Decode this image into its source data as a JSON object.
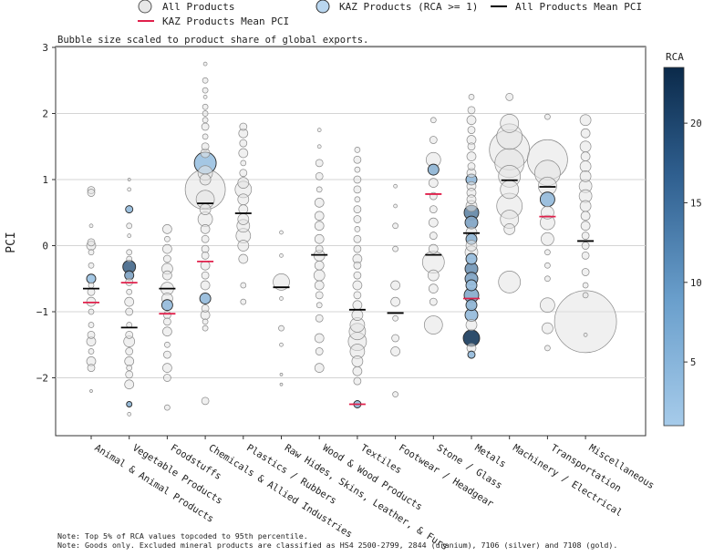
{
  "chart_data": {
    "type": "scatter",
    "subtitle": "Bubble size scaled to product share of global exports.",
    "ylabel": "PCI",
    "xlabel": "",
    "ylim": [
      -2.9,
      3.0
    ],
    "yticks": [
      -2,
      -1,
      0,
      1,
      2,
      3
    ],
    "grid": true,
    "legend": {
      "placement": "top",
      "entries": [
        {
          "label": "All Products",
          "marker": "open-circle"
        },
        {
          "label": "KAZ Products (RCA >= 1)",
          "marker": "blue-circle"
        },
        {
          "label": "All Products Mean PCI",
          "marker": "black-line"
        },
        {
          "label": "KAZ Products Mean PCI",
          "marker": "red-line"
        }
      ]
    },
    "colorbar": {
      "title": "RCA",
      "min": 1,
      "max": 23.5,
      "ticks": [
        5,
        10,
        15,
        20
      ],
      "color_low": "#a6cbea",
      "color_high": "#0b2a4a"
    },
    "categories": [
      "Animal & Animal Products",
      "Vegetable Products",
      "Foodstuffs",
      "Chemicals & Allied Industries",
      "Plastics / Rubbers",
      "Raw Hides, Skins, Leather, & Furs",
      "Wood & Wood Products",
      "Textiles",
      "Footwear / Headgear",
      "Stone / Glass",
      "Metals",
      "Machinery / Electrical",
      "Transportation",
      "Miscellaneous"
    ],
    "all_mean_pci": [
      -0.65,
      -1.24,
      -0.65,
      0.64,
      0.49,
      -0.63,
      -0.14,
      -0.97,
      -1.02,
      -0.14,
      0.19,
      0.99,
      0.89,
      0.07
    ],
    "kaz_mean_pci": [
      -0.86,
      -0.56,
      -1.03,
      -0.24,
      null,
      null,
      null,
      -2.4,
      null,
      0.78,
      -0.8,
      null,
      0.44,
      null
    ],
    "products": [
      [
        [
          0.84,
          4,
          0
        ],
        [
          0.8,
          4,
          0
        ],
        [
          0.3,
          2,
          0
        ],
        [
          0.05,
          4,
          0
        ],
        [
          0.0,
          5,
          0
        ],
        [
          -0.1,
          3,
          0
        ],
        [
          -0.3,
          3,
          0
        ],
        [
          -0.5,
          5,
          2
        ],
        [
          -0.6,
          3,
          0
        ],
        [
          -0.7,
          4,
          0
        ],
        [
          -0.85,
          5,
          0
        ],
        [
          -1.0,
          3,
          0
        ],
        [
          -1.2,
          3,
          0
        ],
        [
          -1.35,
          4,
          0
        ],
        [
          -1.45,
          5,
          0
        ],
        [
          -1.6,
          3,
          0
        ],
        [
          -1.75,
          5,
          0
        ],
        [
          -1.85,
          4,
          0
        ],
        [
          -2.2,
          1.5,
          0
        ]
      ],
      [
        [
          1.0,
          1.5,
          0
        ],
        [
          0.85,
          2,
          0
        ],
        [
          0.55,
          4,
          3
        ],
        [
          0.3,
          3,
          0
        ],
        [
          0.15,
          2,
          0
        ],
        [
          -0.1,
          3,
          0
        ],
        [
          -0.2,
          3,
          0
        ],
        [
          -0.32,
          7,
          14
        ],
        [
          -0.45,
          5,
          6
        ],
        [
          -0.55,
          4,
          0
        ],
        [
          -0.7,
          3,
          0
        ],
        [
          -0.85,
          5,
          0
        ],
        [
          -1.0,
          4,
          0
        ],
        [
          -1.2,
          3,
          0
        ],
        [
          -1.35,
          4,
          0
        ],
        [
          -1.45,
          6,
          0
        ],
        [
          -1.6,
          4,
          0
        ],
        [
          -1.75,
          5,
          0
        ],
        [
          -1.85,
          3,
          0
        ],
        [
          -1.95,
          4,
          0
        ],
        [
          -2.1,
          5,
          0
        ],
        [
          -2.4,
          3,
          4
        ],
        [
          -2.55,
          2,
          0
        ]
      ],
      [
        [
          0.25,
          5,
          0
        ],
        [
          0.1,
          3,
          0
        ],
        [
          -0.05,
          5,
          0
        ],
        [
          -0.2,
          4,
          0
        ],
        [
          -0.35,
          6,
          0
        ],
        [
          -0.45,
          5,
          0
        ],
        [
          -0.65,
          7,
          0
        ],
        [
          -0.8,
          6,
          0
        ],
        [
          -0.9,
          6,
          3
        ],
        [
          -1.05,
          4,
          0
        ],
        [
          -1.15,
          4,
          0
        ],
        [
          -1.3,
          5,
          0
        ],
        [
          -1.5,
          3,
          0
        ],
        [
          -1.65,
          4,
          0
        ],
        [
          -1.85,
          5,
          0
        ],
        [
          -2.0,
          4,
          0
        ],
        [
          -2.45,
          3,
          0
        ]
      ],
      [
        [
          2.75,
          2,
          0
        ],
        [
          2.5,
          3,
          0
        ],
        [
          2.35,
          3,
          0
        ],
        [
          2.25,
          2,
          0
        ],
        [
          2.1,
          3,
          0
        ],
        [
          2.0,
          3,
          0
        ],
        [
          1.9,
          3,
          0
        ],
        [
          1.8,
          4,
          0
        ],
        [
          1.65,
          3,
          0
        ],
        [
          1.5,
          4,
          0
        ],
        [
          1.4,
          5,
          0
        ],
        [
          1.25,
          12,
          2
        ],
        [
          1.1,
          8,
          0
        ],
        [
          1.0,
          6,
          0
        ],
        [
          0.85,
          22,
          0
        ],
        [
          0.7,
          10,
          0
        ],
        [
          0.55,
          6,
          0
        ],
        [
          0.4,
          8,
          0
        ],
        [
          0.25,
          5,
          0
        ],
        [
          0.1,
          4,
          0
        ],
        [
          -0.05,
          4,
          0
        ],
        [
          -0.15,
          4,
          0
        ],
        [
          -0.3,
          5,
          0
        ],
        [
          -0.45,
          4,
          0
        ],
        [
          -0.6,
          5,
          0
        ],
        [
          -0.8,
          6,
          3
        ],
        [
          -0.95,
          4,
          0
        ],
        [
          -1.05,
          5,
          0
        ],
        [
          -1.15,
          3,
          0
        ],
        [
          -1.25,
          3,
          0
        ],
        [
          -2.35,
          4,
          0
        ]
      ],
      [
        [
          1.8,
          4,
          0
        ],
        [
          1.7,
          5,
          0
        ],
        [
          1.55,
          4,
          0
        ],
        [
          1.4,
          5,
          0
        ],
        [
          1.25,
          3,
          0
        ],
        [
          1.1,
          4,
          0
        ],
        [
          0.95,
          6,
          0
        ],
        [
          0.85,
          9,
          0
        ],
        [
          0.7,
          6,
          0
        ],
        [
          0.55,
          5,
          0
        ],
        [
          0.4,
          6,
          0
        ],
        [
          0.3,
          7,
          0
        ],
        [
          0.15,
          8,
          0
        ],
        [
          0.0,
          6,
          0
        ],
        [
          -0.2,
          5,
          0
        ],
        [
          -0.6,
          3,
          0
        ],
        [
          -0.85,
          3,
          0
        ]
      ],
      [
        [
          0.2,
          2,
          0
        ],
        [
          -0.15,
          2,
          0
        ],
        [
          -0.55,
          9,
          0
        ],
        [
          -0.8,
          2,
          0
        ],
        [
          -1.25,
          3,
          0
        ],
        [
          -1.5,
          2,
          0
        ],
        [
          -1.95,
          1.5,
          0
        ],
        [
          -2.1,
          1.5,
          0
        ]
      ],
      [
        [
          1.75,
          2,
          0
        ],
        [
          1.5,
          2,
          0
        ],
        [
          1.25,
          4,
          0
        ],
        [
          1.05,
          4,
          0
        ],
        [
          0.85,
          3,
          0
        ],
        [
          0.65,
          5,
          0
        ],
        [
          0.45,
          5,
          0
        ],
        [
          0.3,
          5,
          0
        ],
        [
          0.1,
          5,
          0
        ],
        [
          -0.05,
          4,
          0
        ],
        [
          -0.15,
          6,
          0
        ],
        [
          -0.3,
          5,
          0
        ],
        [
          -0.45,
          6,
          0
        ],
        [
          -0.6,
          5,
          0
        ],
        [
          -0.75,
          4,
          0
        ],
        [
          -0.9,
          3,
          0
        ],
        [
          -1.1,
          4,
          0
        ],
        [
          -1.4,
          5,
          0
        ],
        [
          -1.6,
          4,
          0
        ],
        [
          -1.85,
          5,
          0
        ]
      ],
      [
        [
          1.45,
          3,
          0
        ],
        [
          1.3,
          4,
          0
        ],
        [
          1.15,
          3,
          0
        ],
        [
          1.0,
          4,
          0
        ],
        [
          0.85,
          4,
          0
        ],
        [
          0.7,
          3,
          0
        ],
        [
          0.55,
          4,
          0
        ],
        [
          0.4,
          4,
          0
        ],
        [
          0.25,
          3,
          0
        ],
        [
          0.1,
          4,
          0
        ],
        [
          -0.05,
          4,
          0
        ],
        [
          -0.2,
          5,
          0
        ],
        [
          -0.3,
          4,
          0
        ],
        [
          -0.45,
          4,
          0
        ],
        [
          -0.6,
          5,
          0
        ],
        [
          -0.75,
          4,
          0
        ],
        [
          -0.9,
          5,
          0
        ],
        [
          -1.05,
          6,
          0
        ],
        [
          -1.2,
          8,
          0
        ],
        [
          -1.3,
          9,
          0
        ],
        [
          -1.45,
          10,
          0
        ],
        [
          -1.6,
          8,
          0
        ],
        [
          -1.75,
          6,
          0
        ],
        [
          -1.9,
          5,
          0
        ],
        [
          -2.05,
          4,
          0
        ],
        [
          -2.4,
          4,
          3
        ]
      ],
      [
        [
          0.9,
          2,
          0
        ],
        [
          0.6,
          2,
          0
        ],
        [
          0.3,
          3,
          0
        ],
        [
          -0.05,
          3,
          0
        ],
        [
          -0.6,
          5,
          0
        ],
        [
          -0.85,
          5,
          0
        ],
        [
          -1.1,
          3,
          0
        ],
        [
          -1.4,
          4,
          0
        ],
        [
          -1.6,
          5,
          0
        ],
        [
          -2.25,
          3,
          0
        ]
      ],
      [
        [
          1.9,
          3,
          0
        ],
        [
          1.6,
          4,
          0
        ],
        [
          1.3,
          8,
          0
        ],
        [
          1.15,
          6,
          4
        ],
        [
          0.95,
          5,
          0
        ],
        [
          0.75,
          4,
          0
        ],
        [
          0.55,
          4,
          0
        ],
        [
          0.35,
          5,
          0
        ],
        [
          0.15,
          4,
          0
        ],
        [
          -0.05,
          5,
          0
        ],
        [
          -0.25,
          12,
          0
        ],
        [
          -0.45,
          6,
          0
        ],
        [
          -0.65,
          5,
          0
        ],
        [
          -0.85,
          4,
          0
        ],
        [
          -1.2,
          10,
          0
        ]
      ],
      [
        [
          2.25,
          3,
          0
        ],
        [
          2.05,
          4,
          0
        ],
        [
          1.9,
          5,
          0
        ],
        [
          1.75,
          4,
          0
        ],
        [
          1.6,
          5,
          0
        ],
        [
          1.5,
          4,
          0
        ],
        [
          1.35,
          5,
          0
        ],
        [
          1.2,
          4,
          0
        ],
        [
          1.1,
          5,
          0
        ],
        [
          1.0,
          6,
          3
        ],
        [
          0.9,
          5,
          0
        ],
        [
          0.8,
          5,
          0
        ],
        [
          0.7,
          5,
          0
        ],
        [
          0.6,
          6,
          0
        ],
        [
          0.5,
          8,
          10
        ],
        [
          0.35,
          7,
          6
        ],
        [
          0.2,
          6,
          0
        ],
        [
          0.1,
          6,
          4
        ],
        [
          0.0,
          6,
          0
        ],
        [
          -0.1,
          7,
          0
        ],
        [
          -0.2,
          6,
          3
        ],
        [
          -0.35,
          7,
          8
        ],
        [
          -0.5,
          7,
          6
        ],
        [
          -0.6,
          6,
          3
        ],
        [
          -0.75,
          8,
          5
        ],
        [
          -0.9,
          6,
          4
        ],
        [
          -1.05,
          7,
          3
        ],
        [
          -1.2,
          6,
          0
        ],
        [
          -1.4,
          9,
          20
        ],
        [
          -1.55,
          5,
          0
        ],
        [
          -1.65,
          4,
          3
        ]
      ],
      [
        [
          2.25,
          4,
          0
        ],
        [
          1.85,
          10,
          0
        ],
        [
          1.65,
          14,
          0
        ],
        [
          1.45,
          22,
          0
        ],
        [
          1.25,
          16,
          0
        ],
        [
          1.05,
          12,
          0
        ],
        [
          0.85,
          10,
          0
        ],
        [
          0.6,
          14,
          0
        ],
        [
          0.4,
          10,
          0
        ],
        [
          0.25,
          6,
          0
        ],
        [
          -0.55,
          12,
          0
        ]
      ],
      [
        [
          1.95,
          3,
          0
        ],
        [
          1.3,
          22,
          0
        ],
        [
          1.1,
          14,
          0
        ],
        [
          0.9,
          10,
          0
        ],
        [
          0.7,
          8,
          3
        ],
        [
          0.5,
          7,
          0
        ],
        [
          0.35,
          8,
          0
        ],
        [
          0.1,
          7,
          0
        ],
        [
          -0.1,
          3,
          0
        ],
        [
          -0.3,
          3,
          0
        ],
        [
          -0.5,
          3,
          0
        ],
        [
          -0.9,
          8,
          0
        ],
        [
          -1.25,
          6,
          0
        ],
        [
          -1.55,
          3,
          0
        ]
      ],
      [
        [
          1.9,
          6,
          0
        ],
        [
          1.7,
          5,
          0
        ],
        [
          1.5,
          6,
          0
        ],
        [
          1.35,
          5,
          0
        ],
        [
          1.2,
          6,
          0
        ],
        [
          1.05,
          6,
          0
        ],
        [
          0.9,
          7,
          0
        ],
        [
          0.75,
          7,
          0
        ],
        [
          0.6,
          6,
          0
        ],
        [
          0.45,
          5,
          0
        ],
        [
          0.3,
          5,
          0
        ],
        [
          0.15,
          4,
          0
        ],
        [
          0.0,
          4,
          0
        ],
        [
          -0.15,
          4,
          0
        ],
        [
          -0.4,
          4,
          0
        ],
        [
          -0.6,
          3,
          0
        ],
        [
          -0.75,
          3,
          0
        ],
        [
          -1.15,
          34,
          0
        ],
        [
          -1.35,
          2,
          0
        ]
      ]
    ],
    "products_format": "[pci, radius_px, rca] per product; rca 0 = not a KAZ product",
    "notes": [
      "Note: Top 5% of RCA values topcoded to 95th percentile.",
      "Note: Goods only. Excluded mineral products are classified as HS4 2500-2799, 2844 (uranium), 7106 (silver) and 7108 (gold)."
    ]
  }
}
